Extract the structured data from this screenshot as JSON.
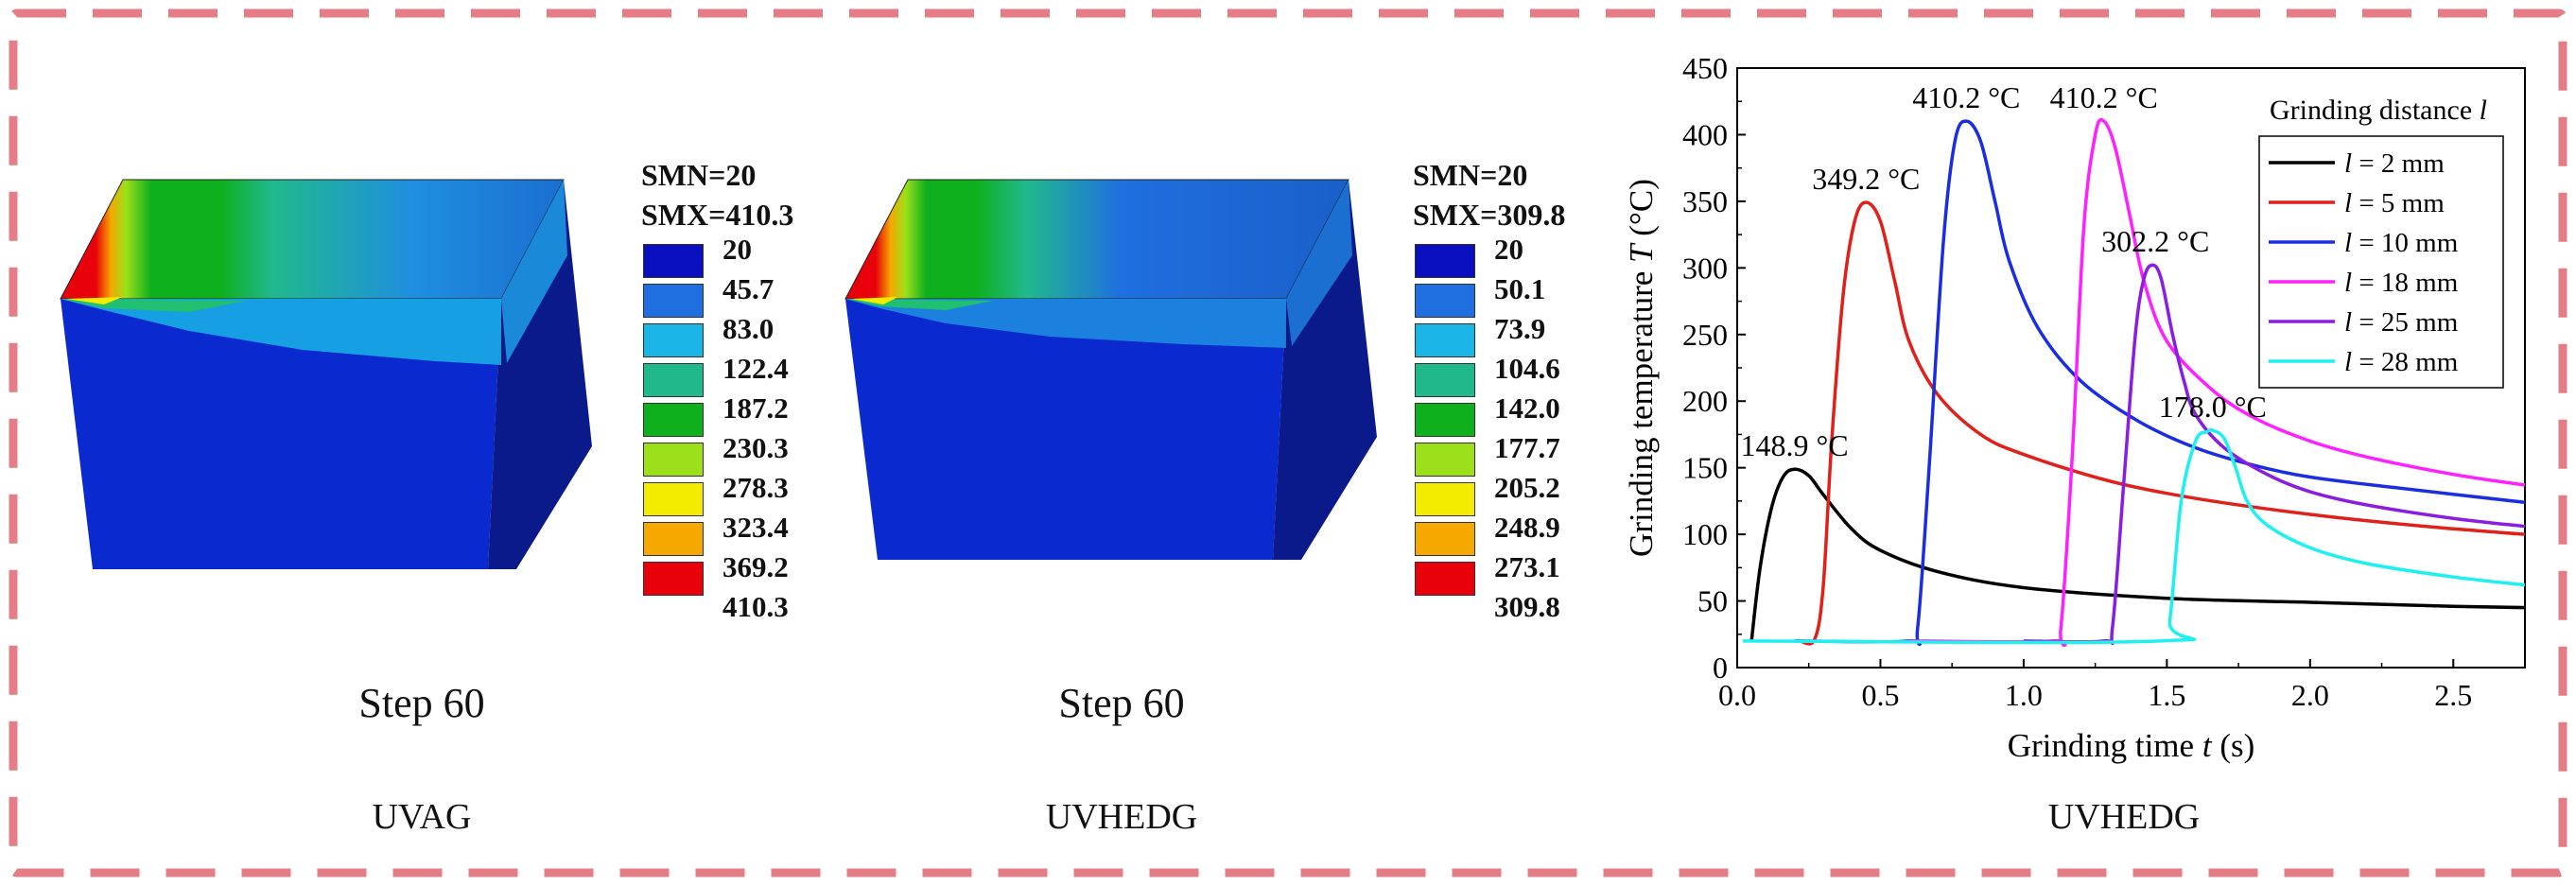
{
  "panels": [
    {
      "smn": "SMN=20",
      "smx": "SMX=410.3",
      "legend_values": [
        "20",
        "45.7",
        "83.0",
        "122.4",
        "187.2",
        "230.3",
        "278.3",
        "323.4",
        "369.2",
        "410.3"
      ],
      "legend_colors": [
        "#0a0fbf",
        "#1f6fe0",
        "#1ab4e6",
        "#20b98c",
        "#0fb01e",
        "#9be01a",
        "#f4ec00",
        "#f5a800",
        "#e8000a"
      ],
      "step": "Step 60",
      "caption": "UVAG"
    },
    {
      "smn": "SMN=20",
      "smx": "SMX=309.8",
      "legend_values": [
        "20",
        "50.1",
        "73.9",
        "104.6",
        "142.0",
        "177.7",
        "205.2",
        "248.9",
        "273.1",
        "309.8"
      ],
      "legend_colors": [
        "#0a0fbf",
        "#1f6fe0",
        "#1ab4e6",
        "#20b98c",
        "#0fb01e",
        "#9be01a",
        "#f4ec00",
        "#f5a800",
        "#e8000a"
      ],
      "step": "Step 60",
      "caption": "UVHEDG"
    }
  ],
  "chart_caption": "UVHEDG",
  "chart_data": {
    "type": "line",
    "xlabel_prefix": "Grinding time ",
    "xlabel_var": "t",
    "xlabel_suffix": " (s)",
    "ylabel_prefix": "Grinding temperature ",
    "ylabel_var": "T",
    "ylabel_suffix": " (°C)",
    "xlim": [
      0.0,
      2.75
    ],
    "ylim": [
      0,
      450
    ],
    "xticks": [
      "0.0",
      "0.5",
      "1.0",
      "1.5",
      "2.0",
      "2.5"
    ],
    "yticks": [
      "0",
      "50",
      "100",
      "150",
      "200",
      "250",
      "300",
      "350",
      "400",
      "450"
    ],
    "legend_title_prefix": "Grinding distance ",
    "legend_title_var": "l",
    "legend_position": "top-right",
    "series": [
      {
        "var": "l",
        "name": " = 2 mm",
        "color": "#000000",
        "x": [
          0.05,
          0.08,
          0.12,
          0.16,
          0.2,
          0.25,
          0.3,
          0.4,
          0.5,
          0.7,
          1.0,
          1.5,
          2.0,
          2.5,
          2.75
        ],
        "y": [
          20,
          75,
          120,
          143,
          148.9,
          144,
          130,
          104,
          88,
          72,
          60,
          52,
          49,
          46,
          45
        ]
      },
      {
        "var": "l",
        "name": " = 5 mm",
        "color": "#e0201a",
        "x": [
          0.22,
          0.27,
          0.3,
          0.33,
          0.37,
          0.41,
          0.45,
          0.5,
          0.55,
          0.6,
          0.7,
          0.85,
          1.0,
          1.3,
          1.6,
          2.0,
          2.4,
          2.75
        ],
        "y": [
          20,
          21,
          60,
          170,
          280,
          335,
          349.2,
          335,
          290,
          245,
          205,
          175,
          160,
          140,
          127,
          115,
          106,
          100
        ]
      },
      {
        "var": "l",
        "name": " = 10 mm",
        "color": "#1a2ee0",
        "x": [
          0.2,
          0.6,
          0.63,
          0.67,
          0.72,
          0.76,
          0.8,
          0.85,
          0.9,
          0.95,
          1.05,
          1.2,
          1.4,
          1.6,
          1.8,
          2.0,
          2.3,
          2.75
        ],
        "y": [
          20,
          20,
          30,
          150,
          320,
          395,
          410.2,
          395,
          350,
          305,
          255,
          215,
          185,
          165,
          152,
          143,
          135,
          124
        ]
      },
      {
        "var": "l",
        "name": " = 18 mm",
        "color": "#ff20ff",
        "x": [
          0.6,
          1.1,
          1.13,
          1.17,
          1.21,
          1.25,
          1.28,
          1.32,
          1.37,
          1.42,
          1.5,
          1.65,
          1.8,
          2.0,
          2.2,
          2.5,
          2.75
        ],
        "y": [
          20,
          20,
          30,
          160,
          330,
          400,
          410.2,
          390,
          340,
          290,
          245,
          210,
          188,
          170,
          158,
          145,
          137
        ]
      },
      {
        "var": "l",
        "name": " = 25 mm",
        "color": "#8a1ee0",
        "x": [
          1.0,
          1.28,
          1.31,
          1.35,
          1.39,
          1.42,
          1.45,
          1.48,
          1.52,
          1.56,
          1.6,
          1.7,
          1.85,
          2.0,
          2.2,
          2.5,
          2.75
        ],
        "y": [
          20,
          20,
          30,
          140,
          250,
          292,
          302.2,
          292,
          250,
          215,
          190,
          165,
          145,
          132,
          122,
          112,
          106
        ]
      },
      {
        "var": "l",
        "name": " = 28 mm",
        "color": "#1ef0f0",
        "x": [
          0.02,
          1.48,
          1.51,
          1.55,
          1.6,
          1.64,
          1.66,
          1.7,
          1.74,
          1.78,
          1.85,
          2.0,
          2.2,
          2.5,
          2.75
        ],
        "y": [
          20,
          20,
          35,
          125,
          170,
          177,
          178.0,
          172,
          150,
          125,
          107,
          90,
          78,
          68,
          62
        ]
      }
    ],
    "annotations": [
      {
        "text": "148.9 °C",
        "x": 0.2,
        "y": 148.9
      },
      {
        "text": "349.2 °C",
        "x": 0.45,
        "y": 349.2
      },
      {
        "text": "410.2 °C",
        "x": 0.8,
        "y": 410.2
      },
      {
        "text": "410.2 °C",
        "x": 1.28,
        "y": 410.2
      },
      {
        "text": "302.2 °C",
        "x": 1.46,
        "y": 302.2
      },
      {
        "text": "178.0 °C",
        "x": 1.66,
        "y": 178.0
      }
    ]
  }
}
